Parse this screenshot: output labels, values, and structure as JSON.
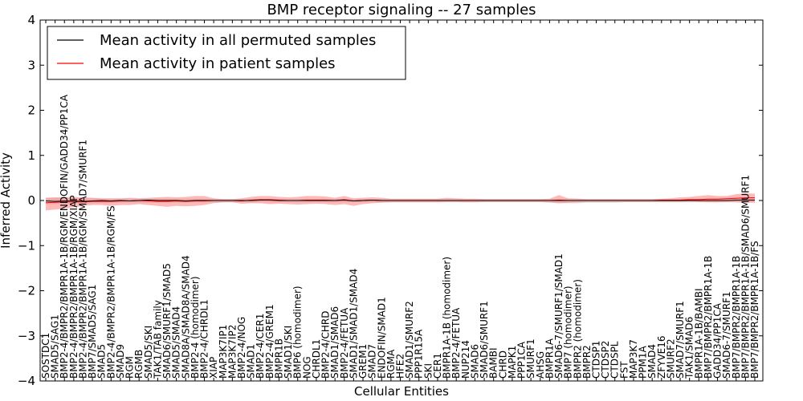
{
  "chart_data": {
    "type": "line",
    "title": "BMP receptor signaling -- 27 samples",
    "xlabel": "Cellular Entities",
    "ylabel": "Inferred Activity",
    "ylim": [
      -4,
      4
    ],
    "yticks": [
      -4,
      -3,
      -2,
      -1,
      0,
      1,
      2,
      3,
      4
    ],
    "ytick_labels": [
      "−4",
      "−3",
      "−2",
      "−1",
      "0",
      "1",
      "2",
      "3",
      "4"
    ],
    "legend_position": "top-left",
    "colors": {
      "permuted_line": "#000000",
      "patient_line": "#ff0000",
      "patient_band": "#ff8080",
      "permuted_band": "#b0b0b0"
    },
    "categories": [
      "SOSTDC1",
      "SMAD5/SAG1",
      "BMP2-4/BMPR2/BMPR1A-1B/RGM/ENDOFIN/GADD34/PP1CA",
      "BMP2-4/BMPR2/BMPR1A-1B/RGM/XIAP",
      "BMP2-4/BMPR2/BMPR1A-1B/RGM/SMAD7/SMURF1",
      "BMP7/SMAD5/SAG1",
      "SMAD5",
      "BMP2-4/BMPR2/BMPR1A-1B/RGM/FS",
      "SMAD9",
      "RGM",
      "RGMB",
      "SMAD5/SKI",
      "TAK1/TAB family",
      "SMAD6/SMURF1/SMAD5",
      "SMAD5/SMAD4",
      "SMAD8A/SMAD8A/SMAD4",
      "BMP2-4 (homodimer)",
      "BMP2-4/CHRDL1",
      "XIAP",
      "MAP3K7IP1",
      "MAP3K7IP2",
      "BMP2-4/NOG",
      "SMAD1",
      "BMP2-4/CER1",
      "BMP2-4/GREM1",
      "BMPR1B",
      "SMAD1/SKI",
      "BMP6 (homodimer)",
      "NOG",
      "CHRDL1",
      "BMP2-4/CHRD",
      "SMAD1/SMAD6",
      "BMP2-4/FETUA",
      "SMAD1/SMAD1/SMAD4",
      "GREM1",
      "SMAD7",
      "ENDOFIN/SMAD1",
      "RGMA",
      "HFE2",
      "SMAD1/SMURF2",
      "PPP1R15A",
      "SKI",
      "CER1",
      "BMPR1A-1B (homodimer)",
      "BMP2-4/FETUA",
      "NUP214",
      "SMAD6",
      "SMAD6/SMURF1",
      "BAMBI",
      "CHRD",
      "MAPK1",
      "PPP1CA",
      "SMURF1",
      "AHSG",
      "BMPR1A",
      "SMAD6-7/SMURF1/SMAD1",
      "BMP7 (homodimer)",
      "BMPR2 (homodimer)",
      "BMPR2",
      "CTDSP1",
      "CTDSP2",
      "CTDSPL",
      "FST",
      "MAP3K7",
      "PPM1A",
      "SMAD4",
      "ZFYVE16",
      "SMURF2",
      "SMAD7/SMURF1",
      "TAK1/SMAD6",
      "BMPR1A-1B/BAMBI",
      "BMP7/BMPR2/BMPR1A-1B",
      "GADD34/PP1CA",
      "SMAD6-7/SMURF1",
      "BMP7/BMPR2/BMPR1A-1B",
      "BMP7/BMPR2/BMPR1A-1B/SMAD6/SMURF1",
      "BMP7/BMPR2/BMPR1A-1B/FS"
    ],
    "series": [
      {
        "name": "Mean activity in all permuted samples",
        "values": [
          -0.01,
          -0.02,
          -0.01,
          -0.01,
          -0.02,
          -0.01,
          0.0,
          -0.01,
          0.0,
          -0.01,
          0.0,
          0.01,
          0.0,
          0.0,
          0.0,
          -0.01,
          0.0,
          0.0,
          0.0,
          0.0,
          0.0,
          0.0,
          0.0,
          0.01,
          0.01,
          0.0,
          0.0,
          0.0,
          0.0,
          0.0,
          0.0,
          0.0,
          0.01,
          -0.01,
          0.0,
          0.01,
          0.0,
          0.0,
          0.0,
          0.0,
          0.0,
          0.0,
          0.0,
          0.0,
          0.0,
          0.0,
          0.0,
          0.0,
          0.0,
          0.0,
          0.0,
          0.0,
          0.0,
          0.0,
          0.0,
          0.0,
          0.0,
          0.0,
          0.0,
          0.0,
          0.0,
          0.0,
          0.0,
          0.0,
          0.0,
          0.0,
          0.0,
          0.0,
          0.0,
          0.0,
          0.0,
          0.0,
          0.0,
          0.0,
          0.01,
          0.01,
          0.01
        ],
        "upper": [
          0.06,
          0.06,
          0.05,
          0.05,
          0.05,
          0.05,
          0.04,
          0.04,
          0.04,
          0.04,
          0.04,
          0.04,
          0.04,
          0.04,
          0.04,
          0.04,
          0.04,
          0.04,
          0.03,
          0.03,
          0.03,
          0.03,
          0.03,
          0.03,
          0.03,
          0.03,
          0.03,
          0.03,
          0.03,
          0.03,
          0.03,
          0.03,
          0.03,
          0.03,
          0.03,
          0.03,
          0.03,
          0.03,
          0.03,
          0.03,
          0.03,
          0.03,
          0.03,
          0.03,
          0.03,
          0.03,
          0.03,
          0.03,
          0.03,
          0.03,
          0.03,
          0.03,
          0.03,
          0.03,
          0.03,
          0.04,
          0.04,
          0.04,
          0.03,
          0.03,
          0.03,
          0.03,
          0.03,
          0.03,
          0.03,
          0.03,
          0.03,
          0.03,
          0.03,
          0.04,
          0.04,
          0.04,
          0.04,
          0.04,
          0.05,
          0.05,
          0.05
        ],
        "lower": [
          -0.08,
          -0.08,
          -0.07,
          -0.07,
          -0.07,
          -0.06,
          -0.06,
          -0.06,
          -0.05,
          -0.05,
          -0.05,
          -0.05,
          -0.05,
          -0.05,
          -0.05,
          -0.05,
          -0.05,
          -0.05,
          -0.04,
          -0.04,
          -0.04,
          -0.04,
          -0.04,
          -0.04,
          -0.04,
          -0.04,
          -0.04,
          -0.04,
          -0.04,
          -0.04,
          -0.04,
          -0.04,
          -0.04,
          -0.04,
          -0.04,
          -0.04,
          -0.04,
          -0.04,
          -0.04,
          -0.04,
          -0.04,
          -0.04,
          -0.04,
          -0.04,
          -0.04,
          -0.04,
          -0.04,
          -0.04,
          -0.04,
          -0.04,
          -0.04,
          -0.04,
          -0.04,
          -0.04,
          -0.05,
          -0.06,
          -0.06,
          -0.06,
          -0.05,
          -0.05,
          -0.05,
          -0.05,
          -0.04,
          -0.04,
          -0.04,
          -0.04,
          -0.04,
          -0.04,
          -0.04,
          -0.04,
          -0.04,
          -0.04,
          -0.04,
          -0.04,
          -0.04,
          -0.04,
          -0.04
        ]
      },
      {
        "name": "Mean activity in patient samples",
        "values": [
          -0.05,
          -0.04,
          -0.03,
          -0.03,
          -0.03,
          -0.02,
          -0.02,
          -0.02,
          -0.01,
          -0.01,
          0.0,
          -0.01,
          -0.02,
          -0.02,
          -0.01,
          -0.02,
          -0.01,
          -0.01,
          0.0,
          0.0,
          0.0,
          -0.01,
          0.01,
          0.02,
          0.02,
          0.01,
          0.0,
          0.0,
          0.01,
          0.01,
          0.01,
          0.0,
          0.02,
          -0.01,
          0.0,
          0.01,
          0.0,
          0.0,
          0.0,
          0.0,
          0.0,
          0.0,
          0.0,
          0.0,
          0.0,
          0.0,
          0.0,
          0.0,
          0.0,
          0.0,
          0.0,
          0.0,
          0.0,
          0.0,
          0.0,
          0.01,
          0.0,
          0.0,
          0.0,
          0.0,
          0.0,
          0.0,
          0.0,
          0.0,
          0.0,
          0.0,
          0.01,
          0.01,
          0.01,
          0.02,
          0.02,
          0.03,
          0.03,
          0.04,
          0.05,
          0.06,
          0.06
        ],
        "upper": [
          0.06,
          0.07,
          0.07,
          0.08,
          0.07,
          0.06,
          0.05,
          0.05,
          0.05,
          0.06,
          0.05,
          0.06,
          0.07,
          0.08,
          0.07,
          0.08,
          0.1,
          0.1,
          0.05,
          0.03,
          0.03,
          0.05,
          0.08,
          0.1,
          0.1,
          0.08,
          0.07,
          0.08,
          0.1,
          0.1,
          0.09,
          0.06,
          0.1,
          0.05,
          0.06,
          0.07,
          0.06,
          0.04,
          0.04,
          0.04,
          0.04,
          0.04,
          0.04,
          0.06,
          0.05,
          0.04,
          0.04,
          0.03,
          0.03,
          0.03,
          0.03,
          0.03,
          0.03,
          0.03,
          0.04,
          0.12,
          0.05,
          0.04,
          0.03,
          0.03,
          0.03,
          0.03,
          0.03,
          0.03,
          0.03,
          0.03,
          0.04,
          0.05,
          0.07,
          0.08,
          0.1,
          0.12,
          0.1,
          0.1,
          0.14,
          0.16,
          0.15
        ],
        "lower": [
          -0.22,
          -0.2,
          -0.18,
          -0.15,
          -0.12,
          -0.1,
          -0.1,
          -0.12,
          -0.1,
          -0.1,
          -0.08,
          -0.1,
          -0.12,
          -0.14,
          -0.12,
          -0.13,
          -0.12,
          -0.1,
          -0.06,
          -0.04,
          -0.04,
          -0.07,
          -0.06,
          -0.06,
          -0.08,
          -0.07,
          -0.08,
          -0.09,
          -0.08,
          -0.07,
          -0.08,
          -0.1,
          -0.08,
          -0.12,
          -0.08,
          -0.06,
          -0.05,
          -0.04,
          -0.04,
          -0.04,
          -0.04,
          -0.04,
          -0.04,
          -0.03,
          -0.03,
          -0.04,
          -0.04,
          -0.03,
          -0.03,
          -0.03,
          -0.03,
          -0.03,
          -0.03,
          -0.03,
          -0.04,
          -0.06,
          -0.05,
          -0.04,
          -0.03,
          -0.03,
          -0.03,
          -0.03,
          -0.03,
          -0.03,
          -0.03,
          -0.03,
          -0.03,
          -0.03,
          -0.03,
          -0.02,
          -0.03,
          -0.04,
          -0.04,
          -0.03,
          -0.04,
          -0.05,
          -0.05
        ]
      }
    ]
  }
}
